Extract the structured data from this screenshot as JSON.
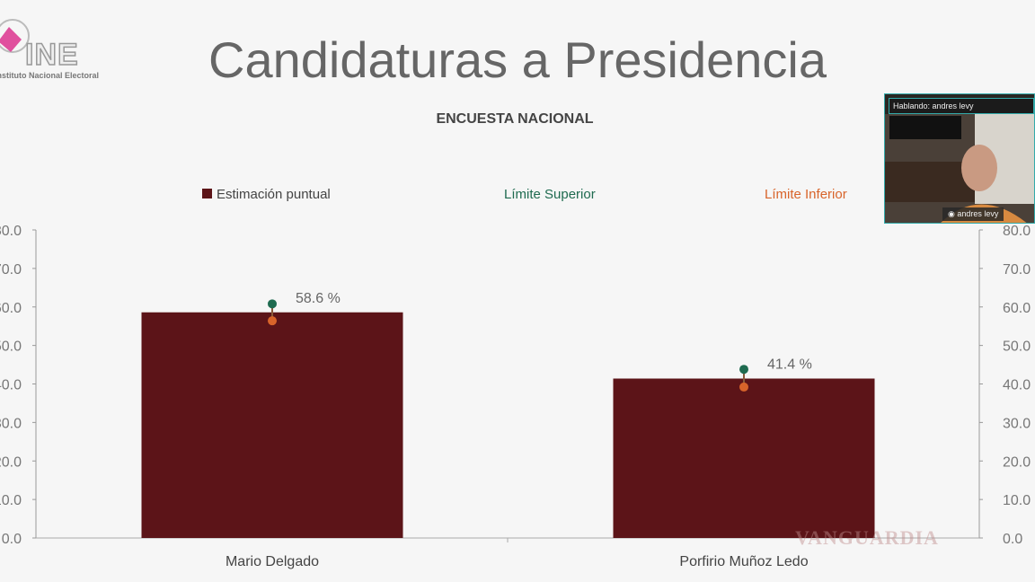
{
  "logo": {
    "text": "INE",
    "subtitle": "Instituto Nacional Electoral"
  },
  "slide": {
    "title": "Candidaturas a Presidencia"
  },
  "video": {
    "speaking_label": "Hablando: andres levy",
    "participant_name": "andres levy"
  },
  "watermark": "VANGUARDIA",
  "chart_data": {
    "type": "bar",
    "title": "ENCUESTA NACIONAL",
    "categories": [
      "Mario Delgado",
      "Porfirio Muñoz Ledo"
    ],
    "series": [
      {
        "name": "Estimación puntual",
        "values": [
          58.6,
          41.4
        ],
        "color": "#5c1418",
        "labels": [
          "58.6 %",
          "41.4 %"
        ]
      },
      {
        "name": "Límite Superior",
        "values": [
          60.8,
          43.8
        ],
        "color": "#1f6b50"
      },
      {
        "name": "Límite Inferior",
        "values": [
          56.4,
          39.2
        ],
        "color": "#d8642a"
      }
    ],
    "ylim": [
      0,
      80
    ],
    "yticks": [
      "0.0",
      "10.0",
      "20.0",
      "30.0",
      "40.0",
      "50.0",
      "60.0",
      "70.0",
      "80.0"
    ],
    "secondary_y_axis": true,
    "legend": "top",
    "grid": false
  }
}
